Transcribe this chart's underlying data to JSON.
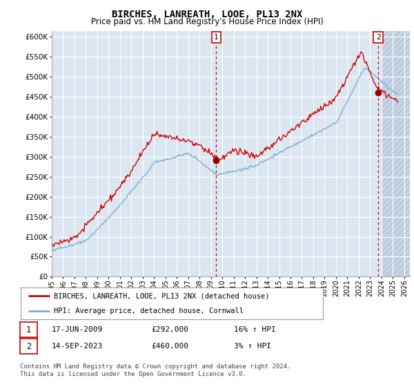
{
  "title": "BIRCHES, LANREATH, LOOE, PL13 2NX",
  "subtitle": "Price paid vs. HM Land Registry's House Price Index (HPI)",
  "yticks": [
    0,
    50000,
    100000,
    150000,
    200000,
    250000,
    300000,
    350000,
    400000,
    450000,
    500000,
    550000,
    600000
  ],
  "ylim": [
    0,
    615000
  ],
  "xmin": 1995,
  "xmax": 2026,
  "transaction1_date": 2009.46,
  "transaction1_price": 292000,
  "transaction2_date": 2023.71,
  "transaction2_price": 460000,
  "legend_house_label": "BIRCHES, LANREATH, LOOE, PL13 2NX (detached house)",
  "legend_hpi_label": "HPI: Average price, detached house, Cornwall",
  "table_row1": [
    "1",
    "17-JUN-2009",
    "£292,000",
    "16% ↑ HPI"
  ],
  "table_row2": [
    "2",
    "14-SEP-2023",
    "£460,000",
    "3% ↑ HPI"
  ],
  "copyright_text": "Contains HM Land Registry data © Crown copyright and database right 2024.\nThis data is licensed under the Open Government Licence v3.0.",
  "line_color_house": "#cc0000",
  "line_color_hpi": "#7aaed4",
  "bg_color": "#dce6f0",
  "grid_color": "#ffffff",
  "hatch_color": "#c8d4e4"
}
